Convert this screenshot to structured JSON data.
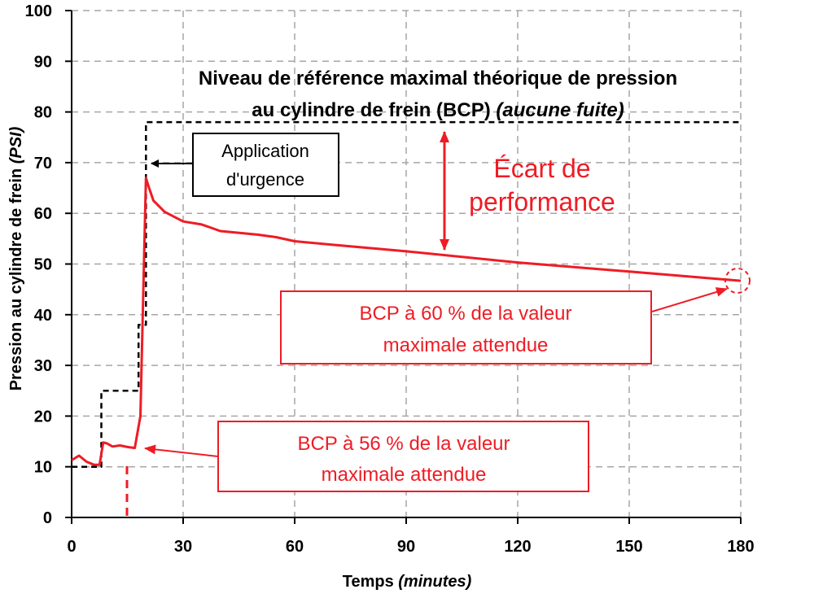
{
  "chart_data": {
    "type": "line",
    "xlabel": "Temps",
    "xlabel_unit": "(minutes)",
    "ylabel": "Pression au cylindre de frein",
    "ylabel_unit": "(PSI)",
    "xlim": [
      0,
      180
    ],
    "ylim": [
      0,
      100
    ],
    "xticks": [
      0,
      30,
      60,
      90,
      120,
      150,
      180
    ],
    "yticks": [
      0,
      10,
      20,
      30,
      40,
      50,
      60,
      70,
      80,
      90,
      100
    ],
    "grid": true,
    "colors": {
      "measured": "#ee1c25",
      "reference": "#000000",
      "annotation_red": "#ee1c25"
    },
    "series": [
      {
        "style": "dashed-black-step",
        "x": [
          0,
          8,
          8,
          18,
          18,
          20,
          20,
          180
        ],
        "y": [
          10,
          10,
          25,
          25,
          38,
          38,
          78,
          78
        ]
      },
      {
        "style": "solid-red",
        "x": [
          0,
          2,
          4,
          6,
          7.5,
          8.5,
          9.5,
          11,
          13,
          15,
          17,
          18.5,
          19.3,
          20,
          20.6,
          22,
          25,
          30,
          35,
          40,
          50,
          55,
          60,
          70,
          90,
          120,
          150,
          180
        ],
        "y": [
          11.3,
          12.2,
          11.0,
          10.4,
          10.4,
          14.8,
          14.6,
          14.0,
          14.2,
          13.9,
          13.7,
          20,
          45,
          67,
          65.5,
          62.5,
          60.3,
          58.4,
          57.8,
          56.5,
          55.8,
          55.3,
          54.5,
          53.8,
          52.5,
          50.3,
          48.5,
          46.7
        ]
      }
    ],
    "annotations": {
      "reference_title_line1": "Niveau de référence maximal théorique de pression",
      "reference_title_line2": "au cylindre de frein (BCP)",
      "reference_title_italic": "(aucune fuite)",
      "gap_line1": "Écart de",
      "gap_line2": "performance",
      "emergency_line1": "Application",
      "emergency_line2": "d'urgence",
      "bcp60_line1": "BCP à 60 % de la valeur",
      "bcp60_line2": "maximale attendue",
      "bcp56_line1": "BCP à 56 % de la valeur",
      "bcp56_line2": "maximale attendue"
    }
  }
}
